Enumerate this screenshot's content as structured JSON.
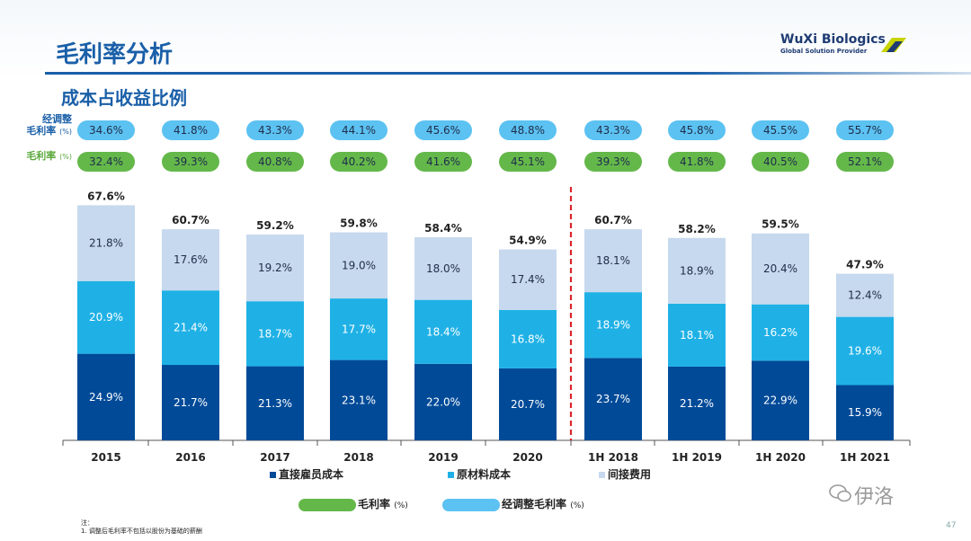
{
  "page": {
    "title": "毛利率分析",
    "subtitle": "成本占收益比例",
    "page_number": "47",
    "note_title": "注：",
    "note_text": "1. 调整后毛利率不包括以股份为基础的薪酬",
    "watermark": "伊洛"
  },
  "logo": {
    "name": "WuXi Biologics",
    "tagline": "Global Solution Provider"
  },
  "row_labels": {
    "adjusted": "经调整",
    "adjusted_line2": "毛利率",
    "adjusted_unit": "(%)",
    "gross": "毛利率",
    "gross_unit": "(%)"
  },
  "legend": {
    "direct": "直接雇员成本",
    "material": "原材料成本",
    "indirect": "间接费用",
    "gross_margin": "毛利率",
    "gross_margin_unit": "(%)",
    "adjusted_margin": "经调整毛利率",
    "adjusted_margin_unit": "(%)"
  },
  "colors": {
    "direct": "#004a98",
    "material": "#1fb1e6",
    "indirect": "#c7d9ee",
    "gross_pill": "#64b84a",
    "adjusted_pill": "#5cc2f2",
    "divider": "#d9262c"
  },
  "chart_data": {
    "type": "bar",
    "stacked": true,
    "categories": [
      "2015",
      "2016",
      "2017",
      "2018",
      "2019",
      "2020",
      "1H 2018",
      "1H 2019",
      "1H 2020",
      "1H 2021"
    ],
    "series": [
      {
        "name": "直接雇员成本",
        "values": [
          "24.9%",
          "21.7%",
          "21.3%",
          "23.1%",
          "22.0%",
          "20.7%",
          "23.7%",
          "21.2%",
          "22.9%",
          "15.9%"
        ]
      },
      {
        "name": "原材料成本",
        "values": [
          "20.9%",
          "21.4%",
          "18.7%",
          "17.7%",
          "18.4%",
          "16.8%",
          "18.9%",
          "18.1%",
          "16.2%",
          "19.6%"
        ]
      },
      {
        "name": "间接费用",
        "values": [
          "21.8%",
          "17.6%",
          "19.2%",
          "19.0%",
          "18.0%",
          "17.4%",
          "18.1%",
          "18.9%",
          "20.4%",
          "12.4%"
        ]
      }
    ],
    "totals": [
      "67.6%",
      "60.7%",
      "59.2%",
      "59.8%",
      "58.4%",
      "54.9%",
      "60.7%",
      "58.2%",
      "59.5%",
      "47.9%"
    ],
    "gross_margin": [
      "32.4%",
      "39.3%",
      "40.8%",
      "40.2%",
      "41.6%",
      "45.1%",
      "39.3%",
      "41.8%",
      "40.5%",
      "52.1%"
    ],
    "adjusted_gross_margin": [
      "34.6%",
      "41.8%",
      "43.3%",
      "44.1%",
      "45.6%",
      "48.8%",
      "43.3%",
      "45.8%",
      "45.5%",
      "55.7%"
    ],
    "divider_after_index": 5
  }
}
